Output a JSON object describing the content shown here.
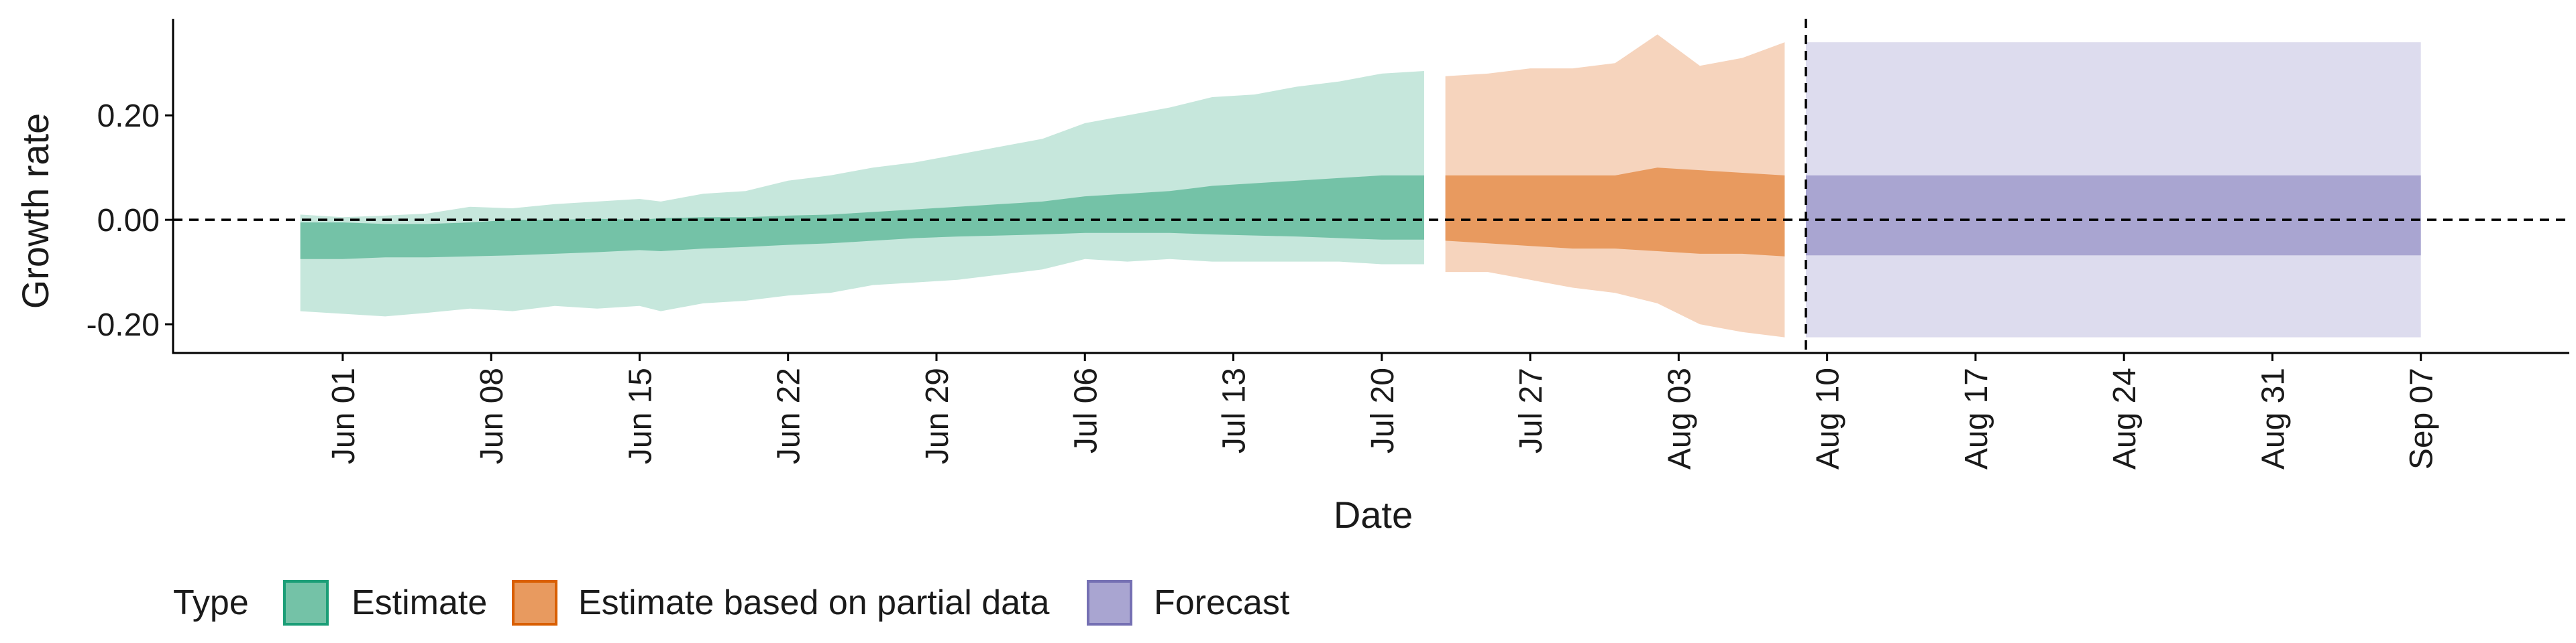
{
  "chart_data": {
    "type": "area",
    "xlabel": "Date",
    "ylabel": "Growth rate",
    "ylim": [
      -0.255,
      0.385
    ],
    "xlim": [
      "2020-05-24",
      "2020-09-14"
    ],
    "y_ticks": [
      {
        "value": -0.2,
        "label": "-0.20"
      },
      {
        "value": 0.0,
        "label": "0.00"
      },
      {
        "value": 0.2,
        "label": "0.20"
      }
    ],
    "x_ticks": [
      {
        "date": "2020-06-01",
        "label": "Jun 01"
      },
      {
        "date": "2020-06-08",
        "label": "Jun 08"
      },
      {
        "date": "2020-06-15",
        "label": "Jun 15"
      },
      {
        "date": "2020-06-22",
        "label": "Jun 22"
      },
      {
        "date": "2020-06-29",
        "label": "Jun 29"
      },
      {
        "date": "2020-07-06",
        "label": "Jul 06"
      },
      {
        "date": "2020-07-13",
        "label": "Jul 13"
      },
      {
        "date": "2020-07-20",
        "label": "Jul 20"
      },
      {
        "date": "2020-07-27",
        "label": "Jul 27"
      },
      {
        "date": "2020-08-03",
        "label": "Aug 03"
      },
      {
        "date": "2020-08-10",
        "label": "Aug 10"
      },
      {
        "date": "2020-08-17",
        "label": "Aug 17"
      },
      {
        "date": "2020-08-24",
        "label": "Aug 24"
      },
      {
        "date": "2020-08-31",
        "label": "Aug 31"
      },
      {
        "date": "2020-09-07",
        "label": "Sep 07"
      }
    ],
    "reference_line_y": 0.0,
    "forecast_start_date": "2020-08-09",
    "grid": false,
    "legend": {
      "position": "bottom-left",
      "title": "Type",
      "entries": [
        {
          "label": "Estimate",
          "fill": "#74C2A7",
          "border": "#1B9E77"
        },
        {
          "label": "Estimate based on partial data",
          "fill": "#E89A5F",
          "border": "#D95F02"
        },
        {
          "label": "Forecast",
          "fill": "#A9A5D1",
          "border": "#7570B3"
        }
      ]
    },
    "series": [
      {
        "name": "Estimate",
        "colors": {
          "outer": "#C6E7DC",
          "inner": "#74C2A7"
        },
        "points": [
          {
            "x": "2020-05-30",
            "outer": [
              -0.175,
              0.01
            ],
            "inner": [
              -0.075,
              -0.005
            ]
          },
          {
            "x": "2020-06-01",
            "outer": [
              -0.18,
              0.005
            ],
            "inner": [
              -0.075,
              -0.005
            ]
          },
          {
            "x": "2020-06-03",
            "outer": [
              -0.185,
              0.008
            ],
            "inner": [
              -0.072,
              -0.008
            ]
          },
          {
            "x": "2020-06-05",
            "outer": [
              -0.178,
              0.012
            ],
            "inner": [
              -0.072,
              -0.008
            ]
          },
          {
            "x": "2020-06-07",
            "outer": [
              -0.17,
              0.025
            ],
            "inner": [
              -0.07,
              -0.005
            ]
          },
          {
            "x": "2020-06-09",
            "outer": [
              -0.175,
              0.022
            ],
            "inner": [
              -0.068,
              0.0
            ]
          },
          {
            "x": "2020-06-11",
            "outer": [
              -0.165,
              0.03
            ],
            "inner": [
              -0.065,
              0.0
            ]
          },
          {
            "x": "2020-06-13",
            "outer": [
              -0.17,
              0.035
            ],
            "inner": [
              -0.062,
              0.002
            ]
          },
          {
            "x": "2020-06-15",
            "outer": [
              -0.165,
              0.04
            ],
            "inner": [
              -0.058,
              0.0
            ]
          },
          {
            "x": "2020-06-16",
            "outer": [
              -0.175,
              0.035
            ],
            "inner": [
              -0.06,
              0.003
            ]
          },
          {
            "x": "2020-06-18",
            "outer": [
              -0.16,
              0.05
            ],
            "inner": [
              -0.055,
              0.005
            ]
          },
          {
            "x": "2020-06-20",
            "outer": [
              -0.155,
              0.055
            ],
            "inner": [
              -0.052,
              0.005
            ]
          },
          {
            "x": "2020-06-22",
            "outer": [
              -0.145,
              0.075
            ],
            "inner": [
              -0.048,
              0.008
            ]
          },
          {
            "x": "2020-06-24",
            "outer": [
              -0.14,
              0.085
            ],
            "inner": [
              -0.045,
              0.01
            ]
          },
          {
            "x": "2020-06-26",
            "outer": [
              -0.125,
              0.1
            ],
            "inner": [
              -0.04,
              0.015
            ]
          },
          {
            "x": "2020-06-28",
            "outer": [
              -0.12,
              0.11
            ],
            "inner": [
              -0.035,
              0.02
            ]
          },
          {
            "x": "2020-06-30",
            "outer": [
              -0.115,
              0.125
            ],
            "inner": [
              -0.032,
              0.025
            ]
          },
          {
            "x": "2020-07-02",
            "outer": [
              -0.105,
              0.14
            ],
            "inner": [
              -0.03,
              0.03
            ]
          },
          {
            "x": "2020-07-04",
            "outer": [
              -0.095,
              0.155
            ],
            "inner": [
              -0.028,
              0.035
            ]
          },
          {
            "x": "2020-07-06",
            "outer": [
              -0.075,
              0.185
            ],
            "inner": [
              -0.025,
              0.045
            ]
          },
          {
            "x": "2020-07-08",
            "outer": [
              -0.08,
              0.2
            ],
            "inner": [
              -0.025,
              0.05
            ]
          },
          {
            "x": "2020-07-10",
            "outer": [
              -0.075,
              0.215
            ],
            "inner": [
              -0.025,
              0.055
            ]
          },
          {
            "x": "2020-07-12",
            "outer": [
              -0.08,
              0.235
            ],
            "inner": [
              -0.028,
              0.065
            ]
          },
          {
            "x": "2020-07-14",
            "outer": [
              -0.08,
              0.24
            ],
            "inner": [
              -0.03,
              0.07
            ]
          },
          {
            "x": "2020-07-16",
            "outer": [
              -0.08,
              0.255
            ],
            "inner": [
              -0.032,
              0.075
            ]
          },
          {
            "x": "2020-07-18",
            "outer": [
              -0.08,
              0.265
            ],
            "inner": [
              -0.035,
              0.08
            ]
          },
          {
            "x": "2020-07-20",
            "outer": [
              -0.085,
              0.28
            ],
            "inner": [
              -0.038,
              0.085
            ]
          },
          {
            "x": "2020-07-22",
            "outer": [
              -0.085,
              0.285
            ],
            "inner": [
              -0.038,
              0.085
            ]
          }
        ]
      },
      {
        "name": "Estimate based on partial data",
        "colors": {
          "outer": "#F6D4BD",
          "inner": "#E89A5F"
        },
        "points": [
          {
            "x": "2020-07-23",
            "outer": [
              -0.1,
              0.275
            ],
            "inner": [
              -0.04,
              0.085
            ]
          },
          {
            "x": "2020-07-25",
            "outer": [
              -0.1,
              0.28
            ],
            "inner": [
              -0.045,
              0.085
            ]
          },
          {
            "x": "2020-07-27",
            "outer": [
              -0.115,
              0.29
            ],
            "inner": [
              -0.05,
              0.085
            ]
          },
          {
            "x": "2020-07-29",
            "outer": [
              -0.13,
              0.29
            ],
            "inner": [
              -0.055,
              0.085
            ]
          },
          {
            "x": "2020-07-31",
            "outer": [
              -0.14,
              0.3
            ],
            "inner": [
              -0.055,
              0.085
            ]
          },
          {
            "x": "2020-08-02",
            "outer": [
              -0.16,
              0.355
            ],
            "inner": [
              -0.06,
              0.1
            ]
          },
          {
            "x": "2020-08-04",
            "outer": [
              -0.2,
              0.295
            ],
            "inner": [
              -0.065,
              0.095
            ]
          },
          {
            "x": "2020-08-06",
            "outer": [
              -0.215,
              0.31
            ],
            "inner": [
              -0.065,
              0.09
            ]
          },
          {
            "x": "2020-08-08",
            "outer": [
              -0.225,
              0.34
            ],
            "inner": [
              -0.07,
              0.085
            ]
          }
        ]
      },
      {
        "name": "Forecast",
        "colors": {
          "outer": "#DDDCEE",
          "inner": "#A9A5D1"
        },
        "points": [
          {
            "x": "2020-08-09",
            "outer": [
              -0.225,
              0.34
            ],
            "inner": [
              -0.068,
              0.085
            ]
          },
          {
            "x": "2020-09-07",
            "outer": [
              -0.225,
              0.34
            ],
            "inner": [
              -0.068,
              0.085
            ]
          }
        ]
      }
    ]
  }
}
